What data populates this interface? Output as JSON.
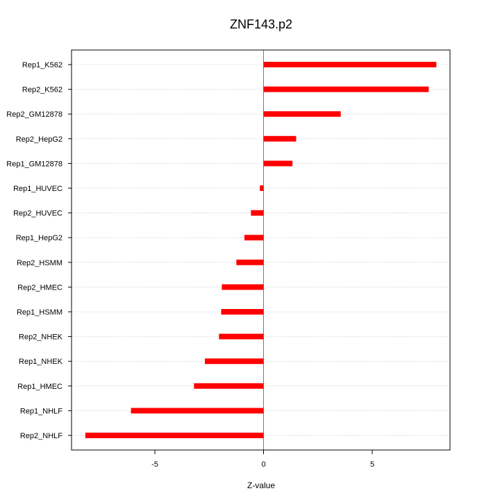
{
  "chart_data": {
    "type": "bar",
    "orientation": "horizontal",
    "title": "ZNF143.p2",
    "xlabel": "Z-value",
    "ylabel": "",
    "xlim": [
      -8.6,
      8.6
    ],
    "xticks": [
      -5,
      0,
      5
    ],
    "xtick_labels": [
      "-5",
      "0",
      "5"
    ],
    "grid": "horizontal dotted lines at each category",
    "zero_line_color": "#00cc00",
    "bar_color": "#ff0000",
    "categories": [
      "Rep1_K562",
      "Rep2_K562",
      "Rep2_GM12878",
      "Rep2_HepG2",
      "Rep1_GM12878",
      "Rep1_HUVEC",
      "Rep2_HUVEC",
      "Rep1_HepG2",
      "Rep2_HSMM",
      "Rep2_HMEC",
      "Rep1_HSMM",
      "Rep2_NHEK",
      "Rep1_NHEK",
      "Rep1_HMEC",
      "Rep1_NHLF",
      "Rep2_NHLF"
    ],
    "values": [
      7.95,
      7.6,
      3.55,
      1.5,
      1.33,
      -0.17,
      -0.58,
      -0.88,
      -1.25,
      -1.92,
      -1.95,
      -2.05,
      -2.7,
      -3.2,
      -6.1,
      -8.2
    ]
  }
}
